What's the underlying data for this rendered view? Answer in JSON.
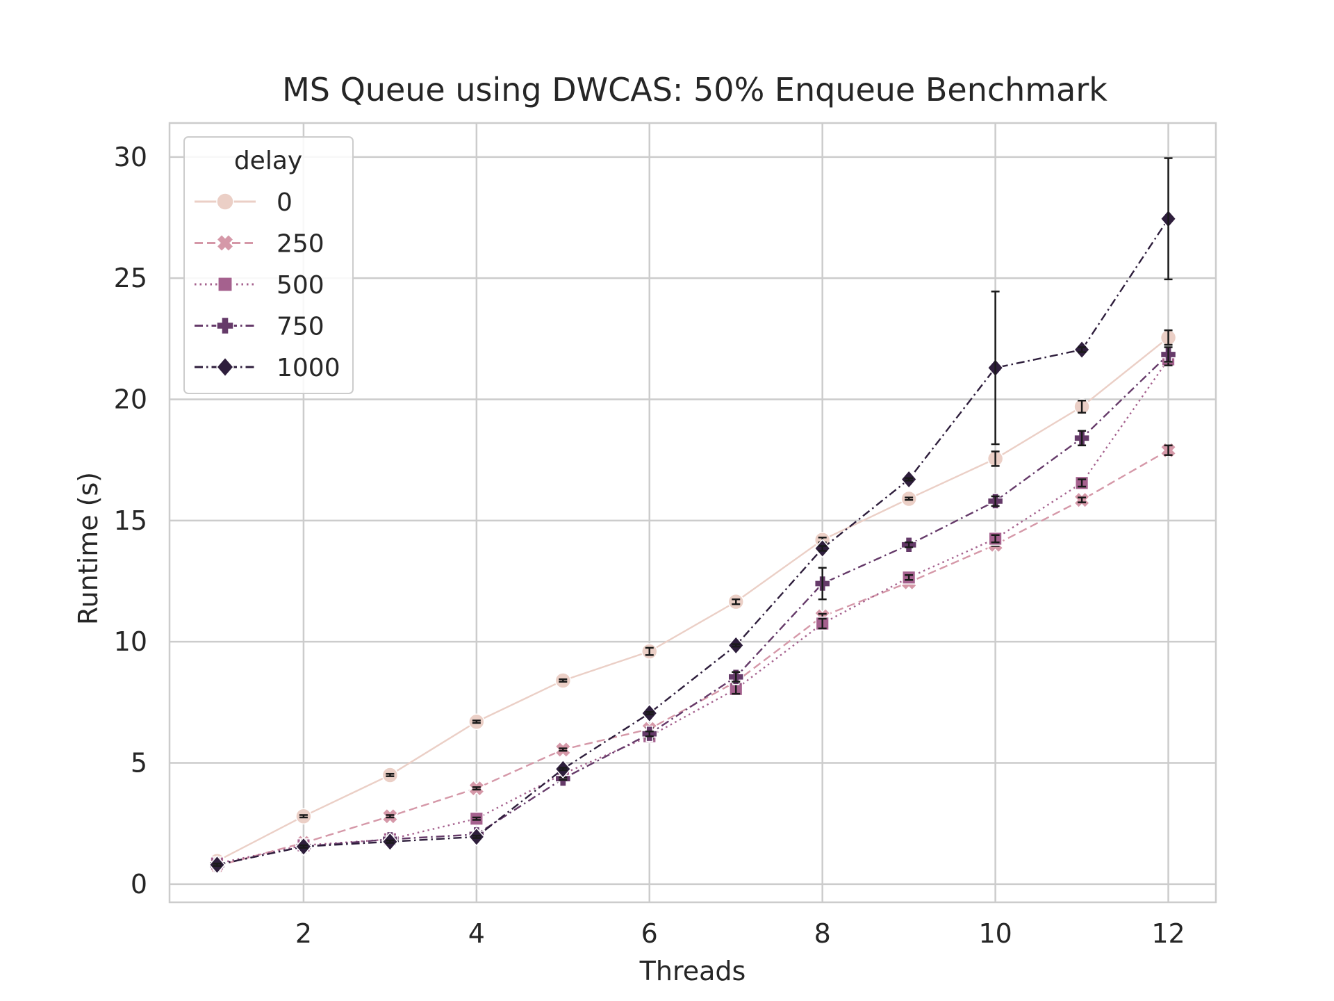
{
  "chart_data": {
    "type": "line",
    "title": "MS Queue using DWCAS: 50% Enqueue Benchmark",
    "xlabel": "Threads",
    "ylabel": "Runtime (s)",
    "xlim": [
      0.45,
      12.55
    ],
    "ylim": [
      -0.75,
      31.4
    ],
    "xticks": [
      2,
      4,
      6,
      8,
      10,
      12
    ],
    "yticks": [
      0,
      5,
      10,
      15,
      20,
      25,
      30
    ],
    "grid": true,
    "legend": {
      "title": "delay",
      "position": "top-left"
    },
    "x": [
      1,
      2,
      3,
      4,
      5,
      6,
      7,
      8,
      9,
      10,
      11,
      12
    ],
    "series": [
      {
        "name": "0",
        "color": "#ebcfc6",
        "marker": "circle",
        "line_style": "solid",
        "values": [
          0.95,
          2.8,
          4.5,
          6.7,
          8.4,
          9.6,
          11.65,
          14.2,
          15.9,
          17.55,
          19.7,
          22.55
        ],
        "error": [
          0.05,
          0.05,
          0.05,
          0.05,
          0.05,
          0.15,
          0.1,
          0.1,
          0.05,
          0.3,
          0.25,
          0.3
        ]
      },
      {
        "name": "250",
        "color": "#d598a8",
        "marker": "x",
        "line_style": "dashed",
        "values": [
          0.75,
          1.7,
          2.8,
          3.95,
          5.55,
          6.4,
          8.35,
          11.05,
          12.45,
          14.0,
          15.85,
          17.9
        ],
        "error": [
          0.05,
          0.05,
          0.05,
          0.05,
          0.05,
          0.05,
          0.05,
          0.1,
          0.05,
          0.05,
          0.1,
          0.2
        ]
      },
      {
        "name": "500",
        "color": "#a5618e",
        "marker": "square",
        "line_style": "dotted",
        "values": [
          0.85,
          1.6,
          1.85,
          2.7,
          4.55,
          6.1,
          8.05,
          10.75,
          12.65,
          14.25,
          16.55,
          21.65
        ],
        "error": [
          0.05,
          0.05,
          0.05,
          0.05,
          0.05,
          0.1,
          0.2,
          0.2,
          0.1,
          0.15,
          0.15,
          0.25
        ]
      },
      {
        "name": "750",
        "color": "#653a69",
        "marker": "plus",
        "line_style": "dashdot",
        "values": [
          0.8,
          1.55,
          1.85,
          2.05,
          4.35,
          6.2,
          8.55,
          12.4,
          14.0,
          15.8,
          18.4,
          21.85
        ],
        "error": [
          0.05,
          0.05,
          0.05,
          0.05,
          0.05,
          0.1,
          0.2,
          0.65,
          0.1,
          0.2,
          0.3,
          0.3
        ]
      },
      {
        "name": "1000",
        "color": "#2e1e3c",
        "marker": "diamond",
        "line_style": "dashdot",
        "values": [
          0.8,
          1.55,
          1.75,
          1.95,
          4.75,
          7.05,
          9.85,
          13.85,
          16.7,
          21.3,
          22.05,
          27.45
        ],
        "error": [
          0.05,
          0.05,
          0.05,
          0.05,
          0.05,
          0.05,
          0.05,
          0.1,
          0.05,
          3.15,
          0.1,
          2.5
        ]
      }
    ]
  }
}
